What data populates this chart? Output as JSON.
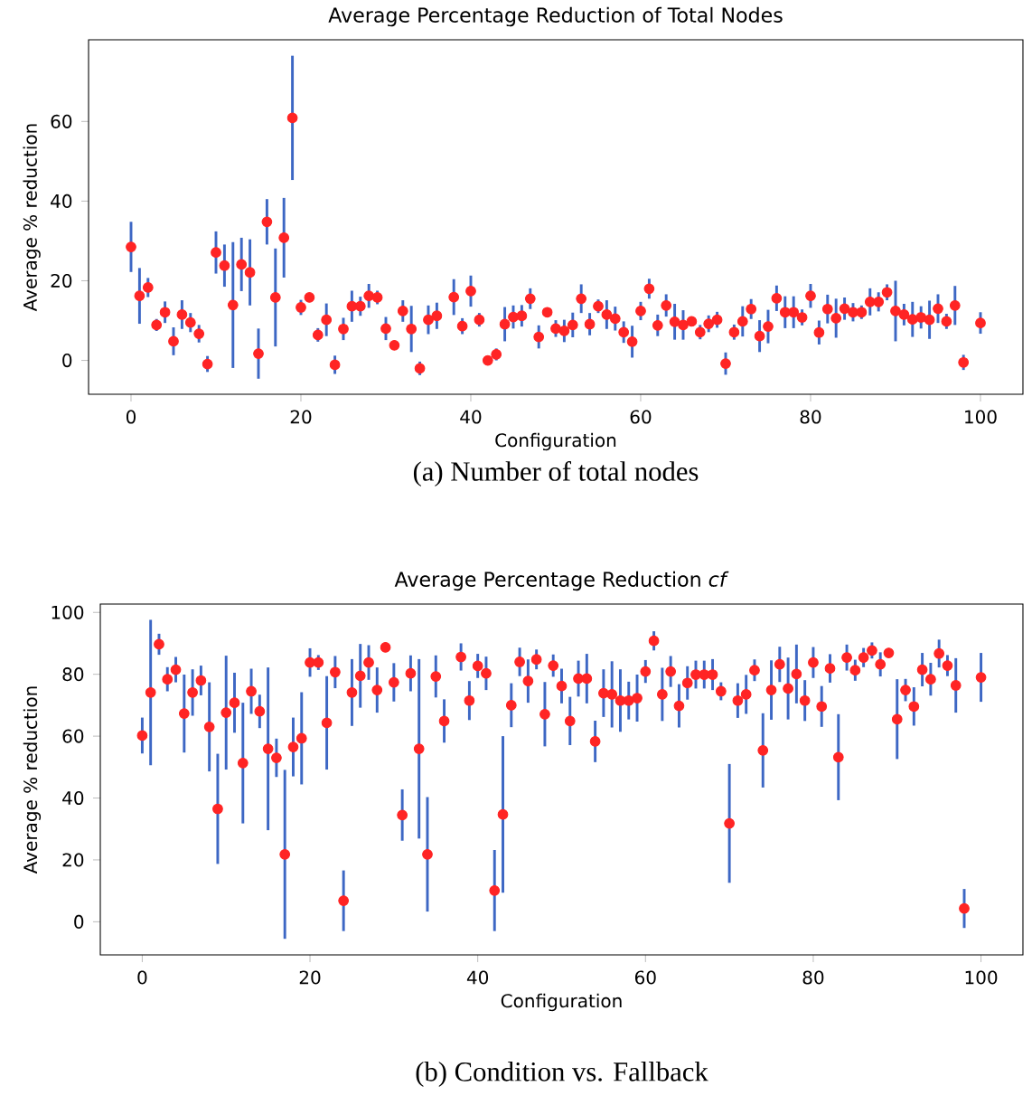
{
  "chart_data": [
    {
      "type": "scatter",
      "title": "Average Percentage Reduction of Total Nodes",
      "xlabel": "Configuration",
      "ylabel": "Average % reduction",
      "marker": "circle",
      "color": "#ff2424",
      "xlim": [
        -5,
        105
      ],
      "ylim": [
        -8.5,
        80.5
      ],
      "xticks": [
        0,
        20,
        40,
        60,
        80,
        100
      ],
      "yticks": [
        0,
        20,
        40,
        60
      ],
      "annotations": [
        "(a) Number of total nodes"
      ],
      "x": [
        0,
        1,
        2,
        3,
        4,
        5,
        6,
        7,
        8,
        9,
        10,
        11,
        12,
        13,
        14,
        15,
        16,
        17,
        18,
        19,
        20,
        21,
        22,
        23,
        24,
        25,
        26,
        27,
        28,
        29,
        30,
        31,
        32,
        33,
        34,
        35,
        36,
        37,
        38,
        39,
        40,
        41,
        42,
        43,
        44,
        45,
        46,
        47,
        48,
        49,
        50,
        51,
        52,
        53,
        54,
        55,
        56,
        57,
        58,
        59,
        60,
        61,
        62,
        63,
        64,
        65,
        66,
        67,
        68,
        69,
        70,
        71,
        72,
        73,
        74,
        75,
        76,
        77,
        78,
        79,
        80,
        81,
        82,
        83,
        84,
        85,
        86,
        87,
        88,
        89,
        90,
        91,
        92,
        93,
        94,
        95,
        96,
        97,
        98,
        99,
        100
      ],
      "values": [
        28.5,
        16.2,
        18.3,
        8.9,
        12.1,
        4.8,
        11.5,
        9.5,
        6.7,
        -0.9,
        27.1,
        23.8,
        13.9,
        24.1,
        22.1,
        1.7,
        34.8,
        15.8,
        30.8,
        60.9,
        13.3,
        15.8,
        6.4,
        10.2,
        -1.1,
        7.9,
        13.6,
        13.6,
        16.2,
        15.8,
        8,
        3.8,
        12.4,
        7.9,
        -2,
        10.2,
        11.2,
        null,
        15.9,
        8.6,
        17.4,
        10.2,
        0,
        1.5,
        9.1,
        10.9,
        11.2,
        15.5,
        5.9,
        12.1,
        8,
        7.4,
        8.9,
        15.5,
        9.1,
        13.6,
        11.5,
        10.5,
        7.1,
        4.7,
        12.4,
        18,
        8.8,
        13.8,
        9.7,
        8.9,
        9.8,
        7.1,
        9.2,
        10.2,
        -0.8,
        7.1,
        9.8,
        12.9,
        6.1,
        8.5,
        15.6,
        12.1,
        12.1,
        10.8,
        16.2,
        7,
        12.9,
        10.6,
        13,
        12.1,
        12.1,
        14.7,
        14.7,
        17.1,
        12.4,
        11.5,
        10.3,
        10.8,
        10.2,
        13,
        9.8,
        13.8,
        -0.5,
        null,
        9.4
      ],
      "errors": [
        6.3,
        7,
        2.4,
        1.5,
        2.7,
        3.5,
        3.6,
        2.4,
        2.2,
        2,
        5.3,
        5.3,
        15.8,
        6.7,
        8.3,
        6.3,
        5.7,
        12.3,
        10,
        15.6,
        1.9,
        null,
        1.7,
        4.1,
        2.3,
        2.8,
        3.9,
        2.4,
        3,
        1.7,
        2.9,
        null,
        2.7,
        5.8,
        1.7,
        3.6,
        3.3,
        null,
        4.5,
        2,
        3.9,
        1.7,
        null,
        1.5,
        4.3,
        2.9,
        2.7,
        2.6,
        2.9,
        null,
        2.1,
        2.8,
        3.1,
        3.6,
        2.8,
        1.7,
        3.6,
        3,
        2.7,
        4,
        2.3,
        2.5,
        2.7,
        2.8,
        4.5,
        3.7,
        null,
        1.8,
        2.1,
        2,
        2.8,
        1.9,
        3.8,
        2.5,
        4,
        4.2,
        3.2,
        4,
        4,
        2,
        3,
        3,
        3.6,
        4.9,
        2.8,
        2.3,
        1.7,
        3.4,
        2.4,
        2,
        7.6,
        2.7,
        4.4,
        2.8,
        4.8,
        3.6,
        1.9,
        4.9,
        1.9,
        null,
        2.7
      ]
    },
    {
      "type": "scatter",
      "title": "Average Percentage Reduction *cf*",
      "xlabel": "Configuration",
      "ylabel": "Average % reduction",
      "marker": "circle",
      "color": "#ff2424",
      "xlim": [
        -5,
        105
      ],
      "ylim": [
        -10.7,
        102.7
      ],
      "xticks": [
        0,
        20,
        40,
        60,
        80,
        100
      ],
      "yticks": [
        0,
        20,
        40,
        60,
        80,
        100
      ],
      "annotations": [
        "(b) Condition vs. Fallback"
      ],
      "x": [
        0,
        1,
        2,
        3,
        4,
        5,
        6,
        7,
        8,
        9,
        10,
        11,
        12,
        13,
        14,
        15,
        16,
        17,
        18,
        19,
        20,
        21,
        22,
        23,
        24,
        25,
        26,
        27,
        28,
        29,
        30,
        31,
        32,
        33,
        34,
        35,
        36,
        37,
        38,
        39,
        40,
        41,
        42,
        43,
        44,
        45,
        46,
        47,
        48,
        49,
        50,
        51,
        52,
        53,
        54,
        55,
        56,
        57,
        58,
        59,
        60,
        61,
        62,
        63,
        64,
        65,
        66,
        67,
        68,
        69,
        70,
        71,
        72,
        73,
        74,
        75,
        76,
        77,
        78,
        79,
        80,
        81,
        82,
        83,
        84,
        85,
        86,
        87,
        88,
        89,
        90,
        91,
        92,
        93,
        94,
        95,
        96,
        97,
        98,
        99,
        100
      ],
      "values": [
        60.2,
        74.1,
        89.7,
        78.4,
        81.5,
        67.3,
        74.1,
        78,
        63,
        36.5,
        67.6,
        70.8,
        51.3,
        74.5,
        68,
        55.9,
        53,
        21.8,
        56.5,
        59.3,
        83.8,
        83.8,
        64.3,
        80.7,
        6.8,
        74.1,
        79.5,
        83.8,
        74.9,
        88.7,
        77.4,
        34.5,
        80.3,
        55.9,
        21.8,
        79.3,
        64.9,
        null,
        85.6,
        71.5,
        82.7,
        80.3,
        10.1,
        34.7,
        70,
        84,
        77.8,
        84.8,
        67.1,
        82.8,
        76.2,
        64.9,
        78.6,
        78.6,
        58.3,
        73.9,
        73.5,
        71.5,
        71.5,
        72.3,
        80.9,
        90.8,
        73.5,
        80.9,
        69.8,
        77.2,
        79.9,
        79.9,
        79.9,
        74.5,
        31.8,
        71.5,
        73.5,
        81.3,
        55.4,
        74.9,
        83.2,
        75.4,
        80.1,
        71.5,
        83.8,
        69.6,
        81.9,
        53.2,
        85.4,
        81.3,
        85.4,
        87.7,
        83.2,
        86.9,
        65.5,
        74.9,
        69.6,
        81.5,
        78.4,
        86.7,
        82.8,
        76.4,
        4.3,
        null,
        79
      ],
      "errors": [
        5.8,
        23.5,
        3.4,
        3.9,
        4.1,
        12.6,
        7.5,
        4.8,
        14.4,
        17.8,
        18.4,
        9.7,
        19.5,
        7.3,
        5.4,
        26.3,
        6.2,
        27.3,
        9.5,
        14.9,
        4.6,
        2.4,
        15.1,
        5.2,
        9.8,
        10.8,
        10.3,
        5.6,
        7.3,
        null,
        6.2,
        8.3,
        5.8,
        29,
        18.5,
        6.8,
        7,
        null,
        4.4,
        6.3,
        3.9,
        5.4,
        13.1,
        25.3,
        7.1,
        4.6,
        7,
        3.2,
        10.4,
        3.6,
        5.6,
        7.8,
        5.8,
        8,
        6.7,
        7.7,
        10.7,
        10.1,
        6.1,
        7.6,
        3.7,
        3.1,
        8.6,
        5,
        7,
        5.4,
        4.5,
        4.5,
        5,
        2.9,
        19.2,
        5.6,
        6.3,
        3.5,
        12,
        9.6,
        5.7,
        10,
        9.5,
        6.6,
        5,
        6.6,
        4.6,
        13.9,
        4.2,
        3.4,
        3.1,
        2.6,
        3.9,
        null,
        12.9,
        3.6,
        6.2,
        5.4,
        5.3,
        4.5,
        3.4,
        8.8,
        6.3,
        null,
        7.9
      ]
    }
  ]
}
